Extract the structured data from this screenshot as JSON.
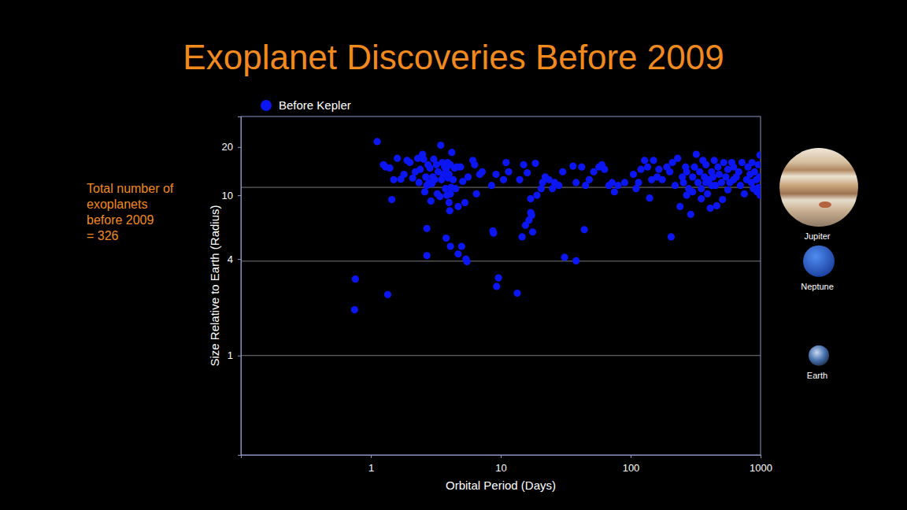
{
  "chart_data": {
    "type": "scatter",
    "title": "Exoplanet Discoveries Before 2009",
    "x_label": "Orbital Period (Days)",
    "y_label": "Size Relative to Earth (Radius)",
    "annotation": [
      "Total number of",
      "exoplanets",
      "before 2009",
      "= 326"
    ],
    "log": true,
    "grid": false,
    "legend": "top-left",
    "xlim": [
      0.1,
      1000
    ],
    "ylim": [
      0.24,
      31
    ],
    "xticks": [
      1,
      10,
      100,
      1000
    ],
    "yticks": [
      1,
      4,
      10,
      20
    ],
    "references": [
      {
        "label": "Jupiter",
        "value": 11.2
      },
      {
        "label": "Neptune",
        "value": 3.88
      },
      {
        "label": "Earth",
        "value": 1
      }
    ],
    "x": [
      0.76,
      0.75,
      1.35,
      1.12,
      1.25,
      1.3,
      1.4,
      1.45,
      1.5,
      1.6,
      1.7,
      1.8,
      1.9,
      2.0,
      2.1,
      2.2,
      2.3,
      2.35,
      2.4,
      2.5,
      2.55,
      2.6,
      2.65,
      2.7,
      2.75,
      2.8,
      2.85,
      2.9,
      2.95,
      3.0,
      3.05,
      3.1,
      3.2,
      3.25,
      3.3,
      3.4,
      3.45,
      3.5,
      3.55,
      3.6,
      3.7,
      3.75,
      3.8,
      3.85,
      3.9,
      3.95,
      4.0,
      4.05,
      4.1,
      4.15,
      4.2,
      4.3,
      4.4,
      4.5,
      4.6,
      4.7,
      4.9,
      5.1,
      5.3,
      5.6,
      6.1,
      6.3,
      6.5,
      6.9,
      7.2,
      8.5,
      9.2,
      10.5,
      11,
      11.5,
      2.7,
      2.7,
      3.8,
      4.1,
      4.7,
      5.0,
      5.4,
      5.5,
      8.7,
      8.8,
      9.3,
      9.6,
      13.4,
      14.6,
      15.5,
      16.5,
      17,
      17.3,
      17.6,
      31,
      38,
      44,
      4.0,
      4.1,
      14,
      15,
      16,
      17,
      18.5,
      19,
      20.5,
      21,
      22,
      23.5,
      25,
      26,
      28,
      30,
      36,
      38,
      42,
      45,
      48,
      52,
      57,
      60,
      63,
      68,
      72,
      75,
      80,
      90,
      105,
      110,
      115,
      120,
      128,
      135,
      140,
      145,
      150,
      160,
      165,
      175,
      190,
      200,
      205,
      210,
      220,
      230,
      240,
      250,
      255,
      265,
      270,
      280,
      290,
      300,
      310,
      320,
      330,
      340,
      350,
      360,
      370,
      380,
      390,
      400,
      410,
      420,
      430,
      440,
      450,
      460,
      470,
      480,
      500,
      510,
      520,
      540,
      560,
      580,
      600,
      620,
      650,
      680,
      700,
      720,
      750,
      780,
      800,
      830,
      860,
      880,
      900,
      930,
      960,
      990,
      995,
      980,
      970,
      940,
      850,
      620,
      560,
      300,
      350,
      380,
      270,
      420
    ],
    "series": [
      {
        "name": "Before Kepler",
        "color": "#0b16f2",
        "marker": "circle",
        "values": [
          3.0,
          1.93,
          2.4,
          21.6,
          15.5,
          15,
          14.8,
          9.4,
          12.5,
          17,
          12.6,
          13.5,
          16.5,
          16,
          12.8,
          14,
          17,
          12,
          14.5,
          18,
          16.8,
          10.5,
          13,
          11.5,
          15.5,
          12,
          14.8,
          9.2,
          11.8,
          13,
          16.8,
          12.5,
          15.5,
          10.2,
          14,
          9.8,
          20.5,
          12.5,
          16,
          13.5,
          15,
          11,
          14.5,
          10,
          16,
          12.8,
          13.5,
          8,
          15.5,
          11.2,
          18.5,
          12.5,
          14.8,
          11,
          15,
          8.5,
          15,
          12.2,
          9,
          13,
          16.5,
          15.5,
          10.2,
          13.5,
          14,
          11.5,
          13.5,
          12.5,
          16,
          14,
          6.2,
          4.2,
          5.4,
          4.8,
          4.3,
          4.8,
          4.0,
          3.85,
          6,
          5.8,
          2.7,
          3.05,
          2.45,
          5.5,
          6.5,
          7.0,
          7.8,
          7.5,
          5.9,
          4.1,
          3.9,
          6.1,
          9,
          10.2,
          12.5,
          15.5,
          13.8,
          9.5,
          15.8,
          10,
          11,
          12,
          13,
          12.5,
          11,
          12,
          11.5,
          14,
          15.2,
          12,
          15,
          11.5,
          12.5,
          14,
          15,
          15.5,
          14.5,
          11.5,
          12,
          10.5,
          11.5,
          12,
          13.5,
          11,
          12,
          14.5,
          16.5,
          15,
          9.6,
          12.5,
          16.5,
          13,
          14.5,
          12.5,
          15,
          14,
          5.5,
          16,
          11.5,
          17,
          8.5,
          13,
          12,
          15,
          14,
          11,
          7.6,
          13,
          15,
          18,
          12,
          14,
          11,
          16.5,
          13,
          15.5,
          10.2,
          12.5,
          8.3,
          14,
          13,
          16.5,
          11.5,
          8.6,
          15,
          13.5,
          12,
          9.4,
          16,
          13,
          14.5,
          12,
          16,
          15,
          13,
          14,
          11.5,
          16,
          10.2,
          12.5,
          15,
          13.5,
          16,
          11,
          14,
          12.5,
          15.5,
          17.8,
          10,
          13,
          11.2,
          10.5,
          12,
          12.5,
          10.8,
          10.5,
          9.5,
          12,
          10,
          11.5
        ]
      }
    ]
  }
}
